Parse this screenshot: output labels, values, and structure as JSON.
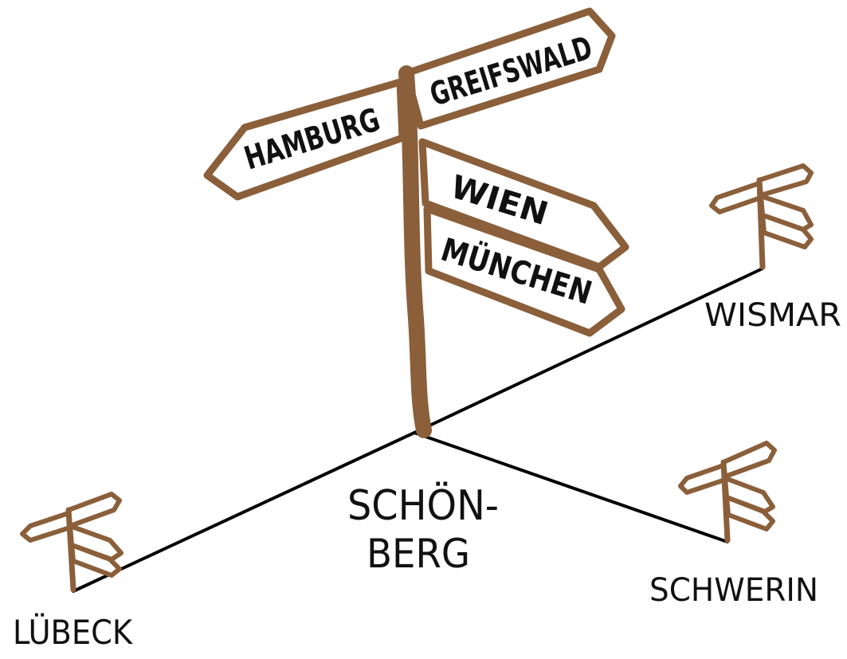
{
  "colors": {
    "wood": "#8a5f3a",
    "ink": "#111111",
    "road": "#000000",
    "background": "#ffffff"
  },
  "main_sign": {
    "left_arrow": "HAMBURG",
    "top_right_arrow": "GREIFSWALD",
    "right_arrow_upper": "WIEN",
    "right_arrow_lower": "MÜNCHEN"
  },
  "center_place": {
    "line1": "SCHÖN-",
    "line2": "BERG"
  },
  "places": {
    "wismar": "WISMAR",
    "schwerin": "SCHWERIN",
    "luebeck": "LÜBECK"
  }
}
